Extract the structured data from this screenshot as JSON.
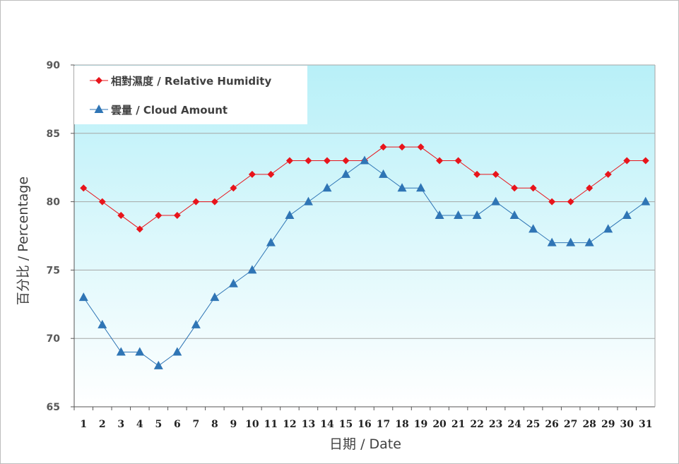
{
  "chart_data": {
    "type": "line",
    "xlabel": "日期 / Date",
    "ylabel": "百分比 / Percentage",
    "ylim": [
      65,
      90
    ],
    "yticks": [
      65,
      70,
      75,
      80,
      85,
      90
    ],
    "x": [
      1,
      2,
      3,
      4,
      5,
      6,
      7,
      8,
      9,
      10,
      11,
      12,
      13,
      14,
      15,
      16,
      17,
      18,
      19,
      20,
      21,
      22,
      23,
      24,
      25,
      26,
      27,
      28,
      29,
      30,
      31
    ],
    "grid": true,
    "legend": "top-left",
    "series": [
      {
        "name": "相對濕度 / Relative Humidity",
        "color": "#e8141b",
        "marker": "diamond",
        "values": [
          81,
          80,
          79,
          78,
          79,
          79,
          80,
          80,
          81,
          82,
          82,
          83,
          83,
          83,
          83,
          83,
          84,
          84,
          84,
          83,
          83,
          82,
          82,
          81,
          81,
          80,
          80,
          81,
          82,
          83,
          83
        ]
      },
      {
        "name": "雲量 / Cloud Amount",
        "color": "#2f75b5",
        "marker": "triangle",
        "values": [
          73,
          71,
          69,
          69,
          68,
          69,
          71,
          73,
          74,
          75,
          77,
          79,
          80,
          81,
          82,
          83,
          82,
          81,
          81,
          79,
          79,
          79,
          80,
          79,
          78,
          77,
          77,
          77,
          78,
          79,
          80
        ]
      }
    ],
    "background_gradient": [
      "#b8f0f8",
      "#ffffff"
    ]
  }
}
